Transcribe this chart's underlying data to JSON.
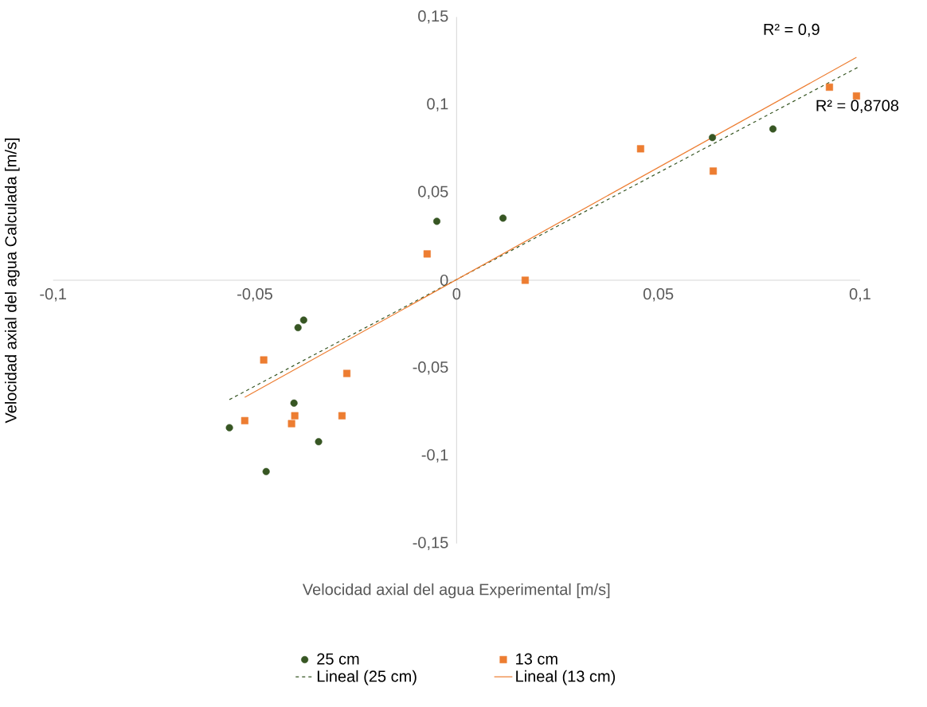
{
  "chart_data": {
    "type": "scatter",
    "xlabel": "Velocidad axial del agua Experimental  [m/s]",
    "ylabel": "Velocidad axial del agua Calculada  [m/s]",
    "xlim": [
      -0.1,
      0.1
    ],
    "ylim": [
      -0.15,
      0.15
    ],
    "xticks": [
      {
        "value": -0.1,
        "label": "-0,1"
      },
      {
        "value": -0.05,
        "label": "-0,05"
      },
      {
        "value": 0,
        "label": "0"
      },
      {
        "value": 0.05,
        "label": "0,05"
      },
      {
        "value": 0.1,
        "label": "0,1"
      }
    ],
    "yticks": [
      {
        "value": -0.15,
        "label": "-0,15"
      },
      {
        "value": -0.1,
        "label": "-0,1"
      },
      {
        "value": -0.05,
        "label": "-0,05"
      },
      {
        "value": 0,
        "label": "0"
      },
      {
        "value": 0.05,
        "label": "0,05"
      },
      {
        "value": 0.1,
        "label": "0,1"
      },
      {
        "value": 0.15,
        "label": "0,15"
      }
    ],
    "grid": false,
    "legend": "bottom",
    "annotations": [
      "R² = 0,9",
      "R² = 0,8708"
    ],
    "series": [
      {
        "name": "25 cm",
        "type": "scatter",
        "marker": "circle",
        "color": "#375623",
        "x": [
          -0.0563,
          -0.0472,
          -0.0393,
          -0.0379,
          -0.0403,
          -0.0342,
          -0.0049,
          0.0115,
          0.0634,
          0.0784
        ],
        "values": [
          -0.084,
          -0.109,
          -0.027,
          -0.0227,
          -0.07,
          -0.092,
          0.0336,
          0.0354,
          0.0813,
          0.0862
        ]
      },
      {
        "name": "13 cm",
        "type": "scatter",
        "marker": "square",
        "color": "#ed7d31",
        "x": [
          -0.0525,
          -0.0478,
          -0.0409,
          -0.0401,
          -0.0284,
          -0.0272,
          -0.0073,
          0.017,
          0.0456,
          0.0636,
          0.0924,
          0.0991
        ],
        "values": [
          -0.08,
          -0.0454,
          -0.0817,
          -0.0772,
          -0.0772,
          -0.0531,
          0.015,
          0.0,
          0.0749,
          0.0622,
          0.11,
          0.105
        ]
      },
      {
        "name": "Lineal (25 cm)",
        "type": "line",
        "marker": "none",
        "line_style": "dashed",
        "color": "#375623",
        "x": [
          -0.0563,
          0.1
        ],
        "values": [
          -0.068,
          0.122
        ]
      },
      {
        "name": "Lineal (13 cm)",
        "type": "line",
        "marker": "none",
        "line_style": "solid",
        "color": "#ed7d31",
        "x": [
          -0.0525,
          0.0991
        ],
        "values": [
          -0.0667,
          0.127
        ]
      }
    ]
  }
}
